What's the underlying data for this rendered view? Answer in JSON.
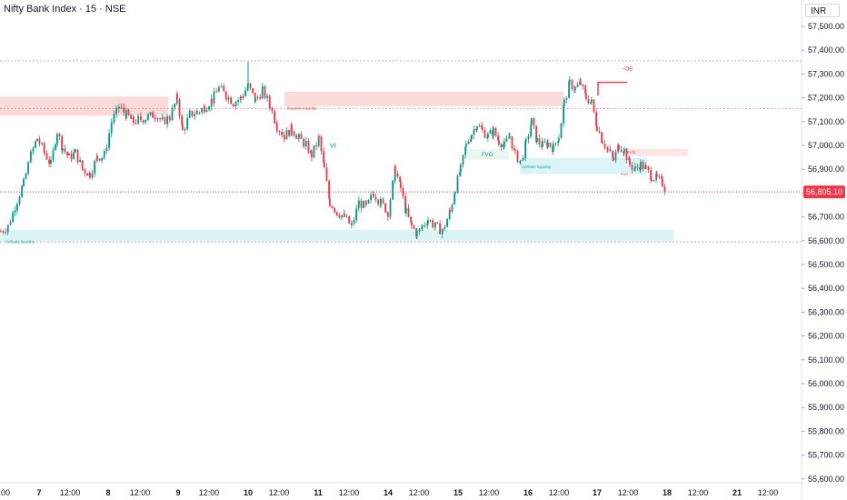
{
  "header": {
    "title": "Nifty Bank Index · 15 · NSE"
  },
  "currency": "INR",
  "colors": {
    "up": "#089981",
    "down": "#f23645",
    "price_tag": "#f23645"
  },
  "chart_data": {
    "type": "candlestick",
    "title": "Nifty Bank Index · 15 · NSE",
    "y_ticks": [
      57500,
      57400,
      57300,
      57200,
      57100,
      57000,
      56900,
      56800,
      56700,
      56600,
      56500,
      56400,
      56300,
      56200,
      56100,
      56000,
      55900,
      55800,
      55700,
      55600
    ],
    "y_tick_labels": [
      "57,500.00",
      "57,400.00",
      "57,300.00",
      "57,200.00",
      "57,100.00",
      "57,000.00",
      "56,900.00",
      "56,800.00",
      "56,700.00",
      "56,600.00",
      "56,500.00",
      "56,400.00",
      "56,300.00",
      "56,200.00",
      "56,100.00",
      "56,000.00",
      "55,900.00",
      "55,800.00",
      "55,700.00",
      "55,600.00"
    ],
    "ylim": [
      55570,
      57590
    ],
    "x_tick_labels": [
      ":00",
      "7",
      "12:00",
      "8",
      "12:00",
      "9",
      "12:00",
      "10",
      "12:00",
      "11",
      "12:00",
      "14",
      "12:00",
      "15",
      "12:00",
      "16",
      "12:00",
      "17",
      "12:00",
      "18",
      "12:00",
      "21",
      "12:00"
    ],
    "x_tick_bold": [
      false,
      true,
      false,
      true,
      false,
      true,
      false,
      true,
      false,
      true,
      false,
      true,
      false,
      true,
      false,
      true,
      false,
      true,
      false,
      true,
      false,
      true,
      false
    ],
    "last_price": 56805.1,
    "last_price_label": "56,805.10",
    "high_line": 57355,
    "low_line": 56595,
    "annotations": [
      {
        "text": "VI",
        "color": "#089981"
      },
      {
        "text": "−OB",
        "color": "#f23645"
      },
      {
        "text": "Buyside liquidity",
        "color": "#f23645"
      },
      {
        "text": "Sellside liquidity",
        "color": "#22ab94"
      },
      {
        "text": "Sellside liquidity",
        "color": "#22ab94"
      },
      {
        "text": "FVG",
        "color": "#089981"
      },
      {
        "text": "FVG",
        "color": "#089981"
      },
      {
        "text": "FVG",
        "color": "#f23645"
      },
      {
        "text": "FVG",
        "color": "#f23645"
      }
    ],
    "zones": [
      {
        "kind": "supply",
        "y_top": 57205,
        "y_bottom": 57125,
        "color": "#fad4d4"
      },
      {
        "kind": "supply",
        "y_top": 57225,
        "y_bottom": 57165,
        "color": "#fad4d4"
      },
      {
        "kind": "demand",
        "y_top": 56645,
        "y_bottom": 56598,
        "color": "#d5f2f7"
      },
      {
        "kind": "demand",
        "y_top": 56948,
        "y_bottom": 56880,
        "color": "#d5f2f7"
      },
      {
        "kind": "fvg_bull",
        "y_top": 56985,
        "y_bottom": 56940,
        "color": "#e6f6ef"
      },
      {
        "kind": "fvg_bear",
        "y_top": 56985,
        "y_bottom": 56955,
        "color": "#fde1e1"
      }
    ],
    "path": [
      [
        0,
        56640
      ],
      [
        8,
        56660
      ],
      [
        18,
        56770
      ],
      [
        25,
        56840
      ],
      [
        33,
        56960
      ],
      [
        40,
        57030
      ],
      [
        48,
        56970
      ],
      [
        55,
        56920
      ],
      [
        62,
        57060
      ],
      [
        68,
        56990
      ],
      [
        75,
        56950
      ],
      [
        82,
        56970
      ],
      [
        90,
        56900
      ],
      [
        98,
        56880
      ],
      [
        106,
        56950
      ],
      [
        114,
        56960
      ],
      [
        122,
        57100
      ],
      [
        130,
        57160
      ],
      [
        138,
        57130
      ],
      [
        146,
        57100
      ],
      [
        154,
        57110
      ],
      [
        162,
        57120
      ],
      [
        170,
        57130
      ],
      [
        178,
        57100
      ],
      [
        186,
        57120
      ],
      [
        194,
        57200
      ],
      [
        200,
        57060
      ],
      [
        208,
        57130
      ],
      [
        216,
        57140
      ],
      [
        224,
        57160
      ],
      [
        232,
        57190
      ],
      [
        240,
        57240
      ],
      [
        248,
        57210
      ],
      [
        256,
        57180
      ],
      [
        264,
        57200
      ],
      [
        272,
        57250
      ],
      [
        280,
        57190
      ],
      [
        288,
        57230
      ],
      [
        296,
        57170
      ],
      [
        304,
        57080
      ],
      [
        312,
        57040
      ],
      [
        320,
        57070
      ],
      [
        328,
        57030
      ],
      [
        336,
        57000
      ],
      [
        342,
        56960
      ],
      [
        350,
        57030
      ],
      [
        356,
        56900
      ],
      [
        362,
        56760
      ],
      [
        370,
        56720
      ],
      [
        378,
        56700
      ],
      [
        386,
        56660
      ],
      [
        394,
        56760
      ],
      [
        402,
        56740
      ],
      [
        410,
        56800
      ],
      [
        418,
        56760
      ],
      [
        426,
        56720
      ],
      [
        434,
        56900
      ],
      [
        440,
        56820
      ],
      [
        446,
        56720
      ],
      [
        452,
        56660
      ],
      [
        458,
        56630
      ],
      [
        464,
        56660
      ],
      [
        470,
        56690
      ],
      [
        478,
        56660
      ],
      [
        486,
        56640
      ],
      [
        494,
        56720
      ],
      [
        500,
        56820
      ],
      [
        506,
        56900
      ],
      [
        512,
        57000
      ],
      [
        518,
        57050
      ],
      [
        524,
        57090
      ],
      [
        530,
        57060
      ],
      [
        536,
        57040
      ],
      [
        542,
        57060
      ],
      [
        548,
        57020
      ],
      [
        554,
        57000
      ],
      [
        560,
        57040
      ],
      [
        566,
        56960
      ],
      [
        572,
        56930
      ],
      [
        578,
        57010
      ],
      [
        584,
        57100
      ],
      [
        590,
        57020
      ],
      [
        596,
        57000
      ],
      [
        602,
        57010
      ],
      [
        608,
        56990
      ],
      [
        614,
        57040
      ],
      [
        620,
        57180
      ],
      [
        626,
        57260
      ],
      [
        632,
        57240
      ],
      [
        638,
        57260
      ],
      [
        644,
        57200
      ],
      [
        650,
        57180
      ],
      [
        656,
        57080
      ],
      [
        662,
        57020
      ],
      [
        668,
        56980
      ],
      [
        674,
        56940
      ],
      [
        680,
        57000
      ],
      [
        686,
        56980
      ],
      [
        692,
        56920
      ],
      [
        698,
        56900
      ],
      [
        704,
        56920
      ],
      [
        710,
        56900
      ],
      [
        716,
        56870
      ],
      [
        722,
        56860
      ],
      [
        728,
        56840
      ],
      [
        733,
        56805
      ]
    ]
  }
}
